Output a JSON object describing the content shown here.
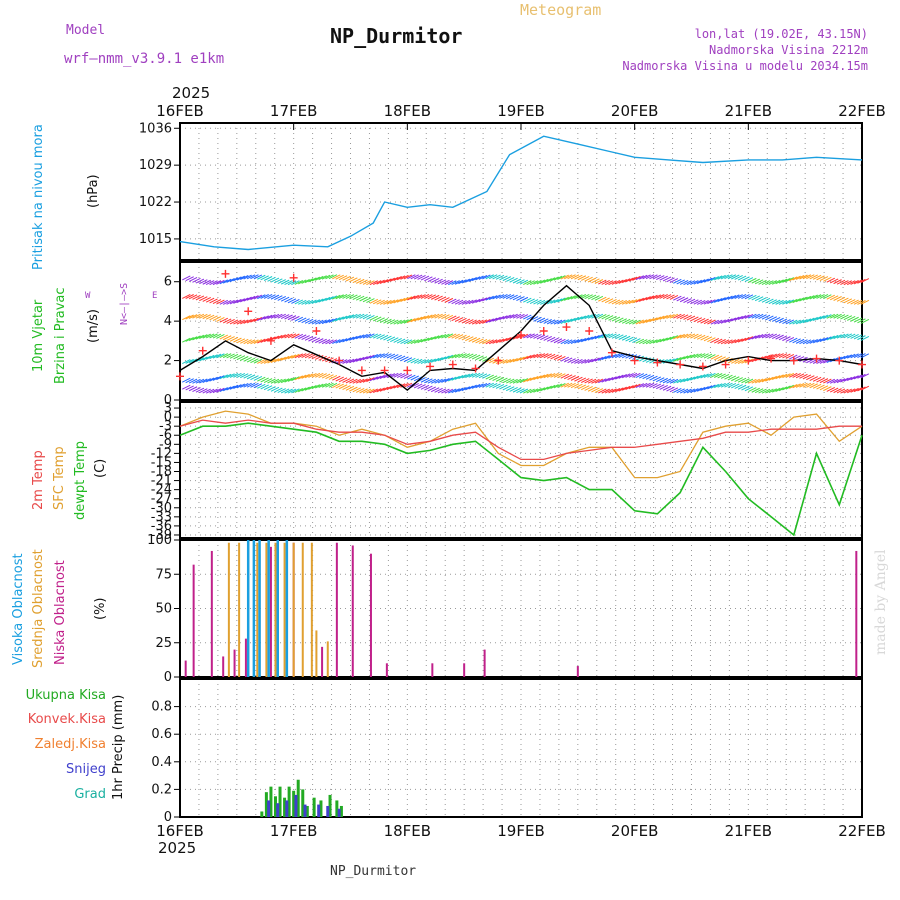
{
  "header": {
    "model_label": "Model",
    "model_value": "wrf–nmm_v3.9.1 e1km",
    "title": "NP_Durmitor",
    "meteogram": "Meteogram",
    "lonlat": "lon,lat (19.02E, 43.15N)",
    "elevation": "Nadmorska Visina 2212m",
    "model_elevation": "Nadmorska Visina u modelu 2034.15m",
    "year_top": "2025",
    "year_bottom": "2025",
    "footer_station": "NP_Durmitor",
    "credit": "made by Angel"
  },
  "time_axis": {
    "labels": [
      "16FEB",
      "17FEB",
      "18FEB",
      "19FEB",
      "20FEB",
      "21FEB",
      "22FEB"
    ],
    "start_day": 16,
    "end_day": 22
  },
  "panels": {
    "pressure": {
      "label1": "Pritisak na nivou mora",
      "label2": "(hPa)"
    },
    "wind": {
      "label1": "10m Vjetar",
      "label2": "Brzina i Pravac",
      "label3": "(m/s)",
      "compass_ns": "N<–|–>S",
      "compass_w": "W",
      "compass_e": "E"
    },
    "temp": {
      "label1": "2m Temp",
      "label2": "SFC Temp",
      "label3": "dewpt Temp",
      "label4": "(C)"
    },
    "cloud": {
      "label1": "Visoka Oblacnost",
      "label2": "Srednja Oblacnost",
      "label3": "Niska Oblacnost",
      "label4": "(%)"
    },
    "precip": {
      "legend": [
        "Ukupna Kisa",
        "Konvek.Kisa",
        "Zaledj.Kisa",
        "Snijeg",
        "Grad"
      ],
      "ylabel": "1hr Precip (mm)"
    }
  },
  "colors": {
    "pressure": "#1a9fe0",
    "wind_speed": "#000000",
    "gust": "#ff3030",
    "temp2m": "#e84a4a",
    "sfc": "#e0a030",
    "dewpt": "#22bb22",
    "cloud_high": "#1a9fe0",
    "cloud_mid": "#e0a030",
    "cloud_low": "#c0208a",
    "rain": "#22aa22",
    "snow": "#4040cc",
    "grad": "#1ab0a0"
  },
  "chart_data": [
    {
      "type": "line",
      "name": "pressure",
      "ylim": [
        1011,
        1037
      ],
      "yticks": [
        1015,
        1022,
        1029,
        1036
      ],
      "x": [
        16.0,
        16.3,
        16.6,
        17.0,
        17.3,
        17.5,
        17.7,
        17.8,
        18.0,
        18.2,
        18.4,
        18.7,
        18.9,
        19.2,
        19.5,
        19.8,
        20.0,
        20.3,
        20.6,
        21.0,
        21.3,
        21.6,
        22.0
      ],
      "values": [
        1014.5,
        1013.5,
        1013,
        1013.8,
        1013.5,
        1015.5,
        1018,
        1022,
        1021,
        1021.5,
        1021,
        1024,
        1031,
        1034.5,
        1033,
        1031.5,
        1030.5,
        1030,
        1029.5,
        1030,
        1030,
        1030.5,
        1030
      ]
    },
    {
      "type": "line",
      "name": "wind",
      "ylim": [
        0,
        7
      ],
      "yticks": [
        0,
        2,
        4,
        6
      ],
      "x": [
        16.0,
        16.2,
        16.4,
        16.6,
        16.8,
        17.0,
        17.2,
        17.4,
        17.6,
        17.8,
        18.0,
        18.2,
        18.4,
        18.6,
        18.8,
        19.0,
        19.2,
        19.4,
        19.6,
        19.8,
        20.0,
        20.2,
        20.4,
        20.6,
        20.8,
        21.0,
        21.2,
        21.4,
        21.6,
        21.8,
        22.0
      ],
      "speed": [
        1.5,
        2.2,
        3.0,
        2.4,
        2.0,
        2.8,
        2.3,
        1.8,
        1.2,
        1.4,
        0.5,
        1.5,
        1.6,
        1.5,
        2.5,
        3.5,
        4.8,
        5.8,
        4.8,
        2.5,
        2.2,
        2.0,
        1.8,
        1.6,
        2.0,
        2.2,
        2.0,
        2.0,
        2.1,
        2.0,
        1.8
      ],
      "gust": [
        1.2,
        2.5,
        6.4,
        4.5,
        3.0,
        6.2,
        3.5,
        2.0,
        1.5,
        1.5,
        1.5,
        1.7,
        1.8,
        1.6,
        2.0,
        3.3,
        3.5,
        3.7,
        3.5,
        2.4,
        2.0,
        1.9,
        1.8,
        1.7,
        1.8,
        2.0,
        2.1,
        2.0,
        2.1,
        2.0,
        1.8
      ]
    },
    {
      "type": "line",
      "name": "temperature",
      "ylim": [
        -40,
        5
      ],
      "yticks": [
        3,
        0,
        -3,
        -6,
        -9,
        -12,
        -15,
        -18,
        -21,
        -24,
        -27,
        -30,
        -33,
        -36,
        -39
      ],
      "x": [
        16.0,
        16.2,
        16.4,
        16.6,
        16.8,
        17.0,
        17.2,
        17.4,
        17.6,
        17.8,
        18.0,
        18.2,
        18.4,
        18.6,
        18.8,
        19.0,
        19.2,
        19.4,
        19.6,
        19.8,
        20.0,
        20.2,
        20.4,
        20.6,
        20.8,
        21.0,
        21.2,
        21.4,
        21.6,
        21.8,
        22.0
      ],
      "t2m": [
        -3,
        -1,
        -2,
        -1,
        -2,
        -2,
        -4,
        -5,
        -5,
        -6,
        -9,
        -8,
        -6,
        -5,
        -10,
        -14,
        -14,
        -12,
        -11,
        -10,
        -10,
        -9,
        -8,
        -7,
        -5,
        -5,
        -4,
        -4,
        -4,
        -3,
        -3
      ],
      "sfc": [
        -3,
        0,
        2,
        1,
        -2,
        -2,
        -3,
        -6,
        -4,
        -6,
        -10,
        -8,
        -4,
        -2,
        -12,
        -16,
        -16,
        -12,
        -10,
        -10,
        -20,
        -20,
        -18,
        -5,
        -3,
        -2,
        -6,
        0,
        1,
        -8,
        -3
      ],
      "dewpt": [
        -6,
        -3,
        -3,
        -2,
        -3,
        -4,
        -5,
        -8,
        -8,
        -9,
        -12,
        -11,
        -9,
        -8,
        -14,
        -20,
        -21,
        -20,
        -24,
        -24,
        -31,
        -32,
        -25,
        -10,
        -18,
        -27,
        -33,
        -39,
        -12,
        -29,
        -6
      ]
    },
    {
      "type": "bar",
      "name": "cloud",
      "ylim": [
        0,
        100
      ],
      "yticks": [
        0,
        25,
        50,
        75,
        100
      ],
      "low": [
        [
          16.05,
          12
        ],
        [
          16.12,
          82
        ],
        [
          16.28,
          92
        ],
        [
          16.38,
          15
        ],
        [
          16.48,
          20
        ],
        [
          16.58,
          28
        ],
        [
          16.7,
          90
        ],
        [
          16.8,
          95
        ],
        [
          17.0,
          98
        ],
        [
          17.25,
          22
        ],
        [
          17.38,
          98
        ],
        [
          17.52,
          96
        ],
        [
          17.68,
          90
        ],
        [
          17.82,
          10
        ],
        [
          18.22,
          10
        ],
        [
          18.5,
          10
        ],
        [
          18.68,
          20
        ],
        [
          19.5,
          8
        ],
        [
          21.95,
          92
        ]
      ],
      "mid": [
        [
          16.43,
          98
        ],
        [
          16.52,
          98
        ],
        [
          16.6,
          98
        ],
        [
          16.68,
          98
        ],
        [
          16.76,
          98
        ],
        [
          16.84,
          98
        ],
        [
          16.92,
          98
        ],
        [
          17.0,
          98
        ],
        [
          17.08,
          98
        ],
        [
          17.16,
          98
        ],
        [
          17.2,
          34
        ],
        [
          17.3,
          26
        ]
      ],
      "high": [
        [
          16.6,
          100
        ],
        [
          16.65,
          100
        ],
        [
          16.7,
          100
        ],
        [
          16.78,
          100
        ],
        [
          16.86,
          100
        ],
        [
          16.94,
          100
        ]
      ]
    },
    {
      "type": "bar",
      "name": "precipitation",
      "ylim": [
        0,
        1
      ],
      "yticks": [
        0,
        0.2,
        0.4,
        0.6,
        0.8
      ],
      "rain": [
        [
          16.72,
          0.04
        ],
        [
          16.76,
          0.18
        ],
        [
          16.8,
          0.22
        ],
        [
          16.84,
          0.15
        ],
        [
          16.88,
          0.22
        ],
        [
          16.92,
          0.14
        ],
        [
          16.96,
          0.22
        ],
        [
          17.0,
          0.19
        ],
        [
          17.04,
          0.27
        ],
        [
          17.08,
          0.2
        ],
        [
          17.12,
          0.08
        ],
        [
          17.18,
          0.14
        ],
        [
          17.24,
          0.12
        ],
        [
          17.32,
          0.16
        ],
        [
          17.38,
          0.12
        ],
        [
          17.42,
          0.08
        ]
      ],
      "snow": [
        [
          16.78,
          0.12
        ],
        [
          16.86,
          0.1
        ],
        [
          16.94,
          0.12
        ],
        [
          17.02,
          0.16
        ],
        [
          17.1,
          0.09
        ],
        [
          17.22,
          0.09
        ],
        [
          17.3,
          0.08
        ],
        [
          17.4,
          0.06
        ]
      ]
    }
  ]
}
